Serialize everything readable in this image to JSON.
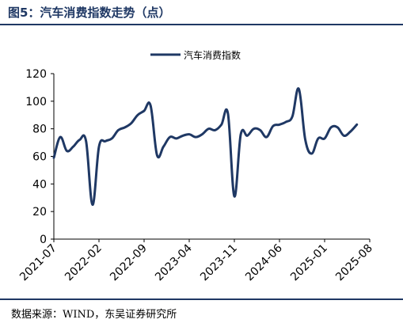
{
  "figure": {
    "title": "图5：汽车消费指数走势（点）",
    "source": "数据来源：WIND，东吴证券研究所"
  },
  "chart_data": {
    "type": "line",
    "title": "",
    "xlabel": "",
    "ylabel": "",
    "ylim": [
      0,
      120
    ],
    "yticks": [
      0,
      20,
      40,
      60,
      80,
      100,
      120
    ],
    "xtick_labels": [
      "2021-07",
      "2022-02",
      "2022-09",
      "2023-04",
      "2023-11",
      "2024-06",
      "2025-01",
      "2025-08"
    ],
    "legend": {
      "position": "top-center"
    },
    "grid": false,
    "line_color": "#1f3864",
    "series": [
      {
        "name": "汽车消费指数",
        "x": [
          "2021-07",
          "2021-08",
          "2021-09",
          "2021-10",
          "2021-11",
          "2021-12",
          "2022-01",
          "2022-02",
          "2022-03",
          "2022-04",
          "2022-05",
          "2022-06",
          "2022-07",
          "2022-08",
          "2022-09",
          "2022-10",
          "2022-11",
          "2022-12",
          "2023-01",
          "2023-02",
          "2023-03",
          "2023-04",
          "2023-05",
          "2023-06",
          "2023-07",
          "2023-08",
          "2023-09",
          "2023-10",
          "2023-11",
          "2023-12",
          "2024-01",
          "2024-02",
          "2024-03",
          "2024-04",
          "2024-05",
          "2024-06",
          "2024-07",
          "2024-08",
          "2024-09",
          "2024-10",
          "2024-11",
          "2024-12",
          "2025-01",
          "2025-02",
          "2025-03",
          "2025-04",
          "2025-05",
          "2025-06",
          "2025-07",
          "2025-08"
        ],
        "values": [
          59,
          74,
          64,
          67,
          72,
          71,
          25,
          67,
          71,
          73,
          79,
          81,
          84,
          90,
          93,
          97,
          61,
          67,
          74,
          73,
          75,
          76,
          74,
          76,
          80,
          79,
          83,
          91,
          31,
          76,
          75,
          80,
          79,
          74,
          82,
          83,
          85,
          89,
          109,
          72,
          62,
          73,
          73,
          81,
          81,
          75,
          78,
          83,
          null,
          null
        ]
      }
    ]
  }
}
